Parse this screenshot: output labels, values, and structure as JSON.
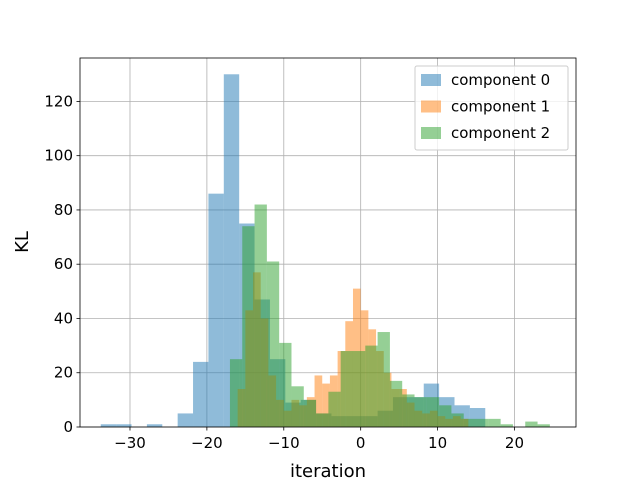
{
  "chart_data": {
    "type": "bar",
    "title": "",
    "xlabel": "iteration",
    "ylabel": "KL",
    "xlim": [
      -36.5,
      28
    ],
    "ylim": [
      0,
      136
    ],
    "xticks": [
      -30,
      -20,
      -10,
      0,
      10,
      20
    ],
    "yticks": [
      0,
      20,
      40,
      60,
      80,
      100,
      120
    ],
    "grid": true,
    "legend_position": "top-right",
    "series": [
      {
        "name": "component 0",
        "color": "#1f77b4",
        "opacity": 0.5,
        "bin_width": 2.0,
        "bins": [
          {
            "x0": -33.8,
            "count": 1
          },
          {
            "x0": -31.8,
            "count": 1
          },
          {
            "x0": -27.8,
            "count": 1
          },
          {
            "x0": -23.8,
            "count": 5
          },
          {
            "x0": -21.8,
            "count": 24
          },
          {
            "x0": -19.8,
            "count": 86
          },
          {
            "x0": -17.8,
            "count": 130
          },
          {
            "x0": -15.8,
            "count": 75
          },
          {
            "x0": -13.8,
            "count": 47
          },
          {
            "x0": -11.8,
            "count": 25
          },
          {
            "x0": -9.8,
            "count": 9
          },
          {
            "x0": -7.8,
            "count": 10
          },
          {
            "x0": -5.8,
            "count": 5
          },
          {
            "x0": -3.8,
            "count": 4
          },
          {
            "x0": -1.8,
            "count": 4
          },
          {
            "x0": 0.2,
            "count": 4
          },
          {
            "x0": 2.2,
            "count": 6
          },
          {
            "x0": 4.2,
            "count": 11
          },
          {
            "x0": 6.2,
            "count": 11
          },
          {
            "x0": 8.2,
            "count": 16
          },
          {
            "x0": 10.2,
            "count": 11
          },
          {
            "x0": 12.2,
            "count": 8
          },
          {
            "x0": 14.2,
            "count": 7
          }
        ]
      },
      {
        "name": "component 1",
        "color": "#ff7f0e",
        "opacity": 0.5,
        "bin_width": 1.0,
        "bins": [
          {
            "x0": -16.0,
            "count": 14
          },
          {
            "x0": -15.0,
            "count": 43
          },
          {
            "x0": -14.0,
            "count": 57
          },
          {
            "x0": -13.0,
            "count": 40
          },
          {
            "x0": -12.0,
            "count": 19
          },
          {
            "x0": -11.0,
            "count": 10
          },
          {
            "x0": -10.0,
            "count": 6
          },
          {
            "x0": -9.0,
            "count": 10
          },
          {
            "x0": -8.0,
            "count": 8
          },
          {
            "x0": -7.0,
            "count": 11
          },
          {
            "x0": -6.0,
            "count": 19
          },
          {
            "x0": -5.0,
            "count": 16
          },
          {
            "x0": -4.0,
            "count": 19
          },
          {
            "x0": -3.0,
            "count": 28
          },
          {
            "x0": -2.0,
            "count": 39
          },
          {
            "x0": -1.0,
            "count": 51
          },
          {
            "x0": 0.0,
            "count": 43
          },
          {
            "x0": 1.0,
            "count": 36
          },
          {
            "x0": 2.0,
            "count": 28
          },
          {
            "x0": 3.0,
            "count": 20
          },
          {
            "x0": 4.0,
            "count": 14
          },
          {
            "x0": 5.0,
            "count": 14
          },
          {
            "x0": 6.0,
            "count": 9
          },
          {
            "x0": 7.0,
            "count": 6
          },
          {
            "x0": 8.0,
            "count": 5
          },
          {
            "x0": 9.0,
            "count": 6
          },
          {
            "x0": 10.0,
            "count": 4
          },
          {
            "x0": 11.0,
            "count": 3
          },
          {
            "x0": 12.0,
            "count": 4
          },
          {
            "x0": 13.0,
            "count": 3
          }
        ]
      },
      {
        "name": "component 2",
        "color": "#2ca02c",
        "opacity": 0.5,
        "bin_width": 1.6,
        "bins": [
          {
            "x0": -17.0,
            "count": 25
          },
          {
            "x0": -15.4,
            "count": 74
          },
          {
            "x0": -13.8,
            "count": 82
          },
          {
            "x0": -12.2,
            "count": 61
          },
          {
            "x0": -10.6,
            "count": 31
          },
          {
            "x0": -9.0,
            "count": 15
          },
          {
            "x0": -7.4,
            "count": 10
          },
          {
            "x0": -5.8,
            "count": 5
          },
          {
            "x0": -4.2,
            "count": 13
          },
          {
            "x0": -2.6,
            "count": 28
          },
          {
            "x0": -1.0,
            "count": 28
          },
          {
            "x0": 0.6,
            "count": 30
          },
          {
            "x0": 2.2,
            "count": 35
          },
          {
            "x0": 3.8,
            "count": 17
          },
          {
            "x0": 5.4,
            "count": 12
          },
          {
            "x0": 7.0,
            "count": 11
          },
          {
            "x0": 8.6,
            "count": 11
          },
          {
            "x0": 10.2,
            "count": 8
          },
          {
            "x0": 11.8,
            "count": 5
          },
          {
            "x0": 13.4,
            "count": 3
          },
          {
            "x0": 15.0,
            "count": 3
          },
          {
            "x0": 16.6,
            "count": 3
          },
          {
            "x0": 18.2,
            "count": 1
          },
          {
            "x0": 21.4,
            "count": 2
          },
          {
            "x0": 23.0,
            "count": 1
          }
        ]
      }
    ]
  }
}
